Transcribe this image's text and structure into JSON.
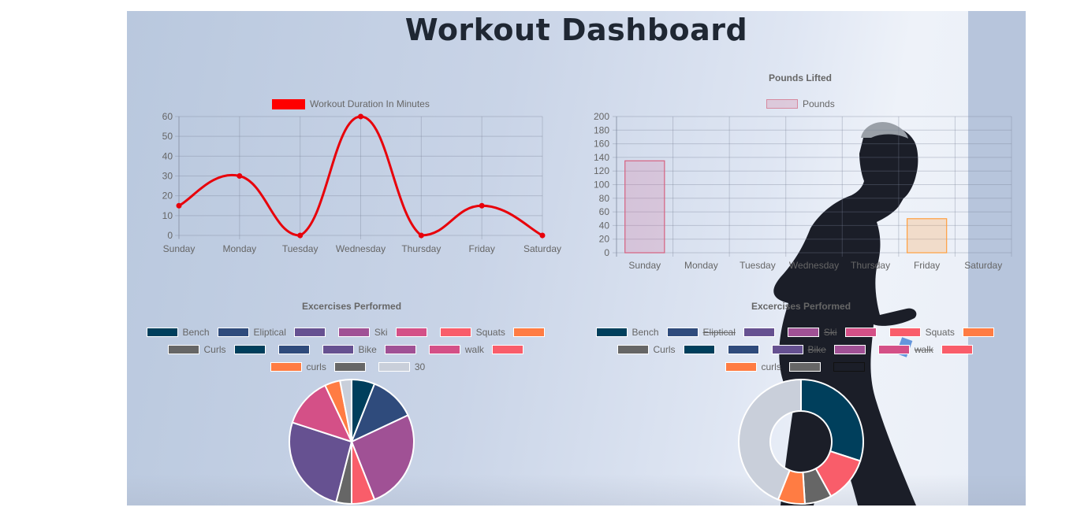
{
  "page": {
    "title": "Workout Dashboard"
  },
  "duration_chart": {
    "legend_label": "Workout Duration In Minutes",
    "legend_color": "#ff0000",
    "chart_data": {
      "type": "line",
      "categories": [
        "Sunday",
        "Monday",
        "Tuesday",
        "Wednesday",
        "Thursday",
        "Friday",
        "Saturday"
      ],
      "series": [
        {
          "name": "Workout Duration In Minutes",
          "values": [
            15,
            30,
            0,
            60,
            0,
            15,
            0
          ]
        }
      ],
      "ylim": [
        0,
        60
      ],
      "yticks": [
        "0",
        "10",
        "20",
        "30",
        "40",
        "50",
        "60"
      ],
      "grid": true,
      "legend_position": "top"
    }
  },
  "pounds_chart": {
    "title": "Pounds Lifted",
    "legend_label": "Pounds",
    "chart_data": {
      "type": "bar",
      "title": "Pounds Lifted",
      "categories": [
        "Sunday",
        "Monday",
        "Tuesday",
        "Wednesday",
        "Thursday",
        "Friday",
        "Saturday"
      ],
      "series": [
        {
          "name": "Pounds",
          "values": [
            135,
            0,
            0,
            0,
            0,
            50,
            0
          ]
        }
      ],
      "ylim": [
        0,
        200
      ],
      "yticks": [
        "0",
        "20",
        "40",
        "60",
        "80",
        "100",
        "120",
        "140",
        "160",
        "180",
        "200"
      ],
      "grid": true,
      "legend_position": "top"
    }
  },
  "pie_chart": {
    "title": "Excercises Performed",
    "legend_rows": [
      [
        {
          "label": "Bench",
          "color": "#003f5c"
        },
        {
          "label": "Eliptical",
          "color": "#2f4b7c"
        },
        {
          "label": "",
          "color": "#665191"
        },
        {
          "label": "Ski",
          "color": "#a05195"
        },
        {
          "label": "",
          "color": "#d45087"
        },
        {
          "label": "Squats",
          "color": "#f95d6a"
        },
        {
          "label": "",
          "color": "#ff7c43"
        }
      ],
      [
        {
          "label": "Curls",
          "color": "#666666"
        },
        {
          "label": "",
          "color": "#003f5c"
        },
        {
          "label": "",
          "color": "#2f4b7c"
        },
        {
          "label": "Bike",
          "color": "#665191"
        },
        {
          "label": "",
          "color": "#a05195"
        },
        {
          "label": "walk",
          "color": "#d45087"
        },
        {
          "label": "",
          "color": "#f95d6a"
        }
      ],
      [
        {
          "label": "curls",
          "color": "#ff7c43"
        },
        {
          "label": "",
          "color": "#666666"
        },
        {
          "label": "30",
          "color": "#c9cfda"
        }
      ]
    ],
    "chart_data": {
      "type": "pie",
      "slices": [
        {
          "color": "#003f5c",
          "value": 6
        },
        {
          "color": "#2f4b7c",
          "value": 12
        },
        {
          "color": "#a05195",
          "value": 26
        },
        {
          "color": "#f95d6a",
          "value": 6
        },
        {
          "color": "#666666",
          "value": 4
        },
        {
          "color": "#665191",
          "value": 26
        },
        {
          "color": "#d45087",
          "value": 13
        },
        {
          "color": "#ff7c43",
          "value": 4
        },
        {
          "color": "#c9cfda",
          "value": 3
        }
      ]
    }
  },
  "donut_chart": {
    "title": "Excercises Performed",
    "legend_rows": [
      [
        {
          "label": "Bench",
          "color": "#003f5c",
          "hidden": false
        },
        {
          "label": "Eliptical",
          "color": "#2f4b7c",
          "hidden": true
        },
        {
          "label": "",
          "color": "#665191",
          "hidden": true
        },
        {
          "label": "Ski",
          "color": "#a05195",
          "hidden": true
        },
        {
          "label": "",
          "color": "#d45087",
          "hidden": true
        },
        {
          "label": "Squats",
          "color": "#f95d6a",
          "hidden": false
        },
        {
          "label": "",
          "color": "#ff7c43",
          "hidden": false
        }
      ],
      [
        {
          "label": "Curls",
          "color": "#666666",
          "hidden": false
        },
        {
          "label": "",
          "color": "#003f5c",
          "hidden": false
        },
        {
          "label": "",
          "color": "#2f4b7c",
          "hidden": false
        },
        {
          "label": "Bike",
          "color": "#665191",
          "hidden": true
        },
        {
          "label": "",
          "color": "#a05195",
          "hidden": true
        },
        {
          "label": "walk",
          "color": "#d45087",
          "hidden": true
        },
        {
          "label": "",
          "color": "#f95d6a",
          "hidden": false
        }
      ],
      [
        {
          "label": "curls",
          "color": "#ff7c43",
          "hidden": false
        },
        {
          "label": "",
          "color": "#666666",
          "hidden": false
        },
        {
          "label": "",
          "color": "#ffffff",
          "hidden": false
        }
      ]
    ],
    "chart_data": {
      "type": "pie",
      "variant": "doughnut",
      "slices": [
        {
          "color": "#003f5c",
          "value": 30
        },
        {
          "color": "#f95d6a",
          "value": 12
        },
        {
          "color": "#666666",
          "value": 7
        },
        {
          "color": "#ff7c43",
          "value": 7
        },
        {
          "color": "#c9cfda",
          "value": 44
        }
      ]
    }
  }
}
